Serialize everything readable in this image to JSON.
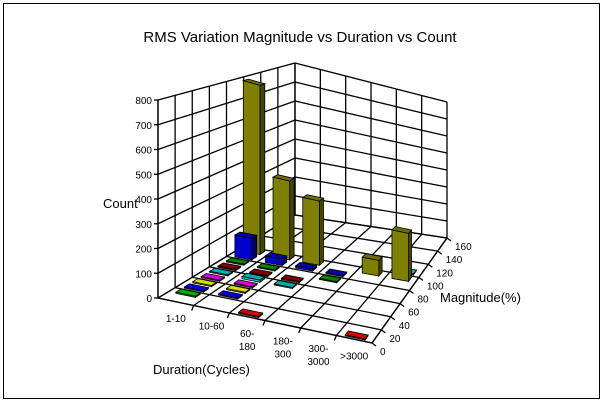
{
  "chart_data": {
    "type": "bar3d",
    "title": "RMS Variation Magnitude vs Duration vs Count",
    "xlabel": "Duration(Cycles)",
    "ylabel": "Magnitude(%)",
    "zlabel": "Count",
    "categories": [
      [
        "1-10"
      ],
      [
        "10-60"
      ],
      [
        "60-",
        "180"
      ],
      [
        "180-",
        "300"
      ],
      [
        "300-",
        "3000"
      ],
      [
        ">3000"
      ]
    ],
    "category_labels": [
      "1-10",
      "10-60",
      "60-180",
      "180-300",
      "300-3000",
      ">3000"
    ],
    "ylim": [
      0,
      160
    ],
    "yticks": [
      0,
      20,
      40,
      60,
      80,
      100,
      120,
      140,
      160
    ],
    "zlim": [
      0,
      800
    ],
    "zticks": [
      0,
      100,
      200,
      300,
      400,
      500,
      600,
      700,
      800
    ],
    "grid": true,
    "series": [
      {
        "magnitude": 105,
        "color": "#33CCCC",
        "values": [
          null,
          null,
          null,
          null,
          null,
          5
        ]
      },
      {
        "magnitude": 95,
        "color": "#808000",
        "values": [
          800,
          380,
          315,
          null,
          80,
          250
        ]
      },
      {
        "magnitude": 85,
        "color": "#0000CC",
        "values": [
          100,
          30,
          10,
          5,
          null,
          null
        ]
      },
      {
        "magnitude": 75,
        "color": "#009900",
        "values": [
          5,
          5,
          null,
          5,
          null,
          null
        ]
      },
      {
        "magnitude": 65,
        "color": "#990000",
        "values": [
          5,
          5,
          5,
          null,
          null,
          null
        ]
      },
      {
        "magnitude": 55,
        "color": "#00CCCC",
        "values": [
          5,
          10,
          5,
          null,
          null,
          null
        ]
      },
      {
        "magnitude": 45,
        "color": "#FF00FF",
        "values": [
          5,
          5,
          null,
          null,
          null,
          null
        ]
      },
      {
        "magnitude": 35,
        "color": "#FFFF00",
        "values": [
          5,
          5,
          null,
          null,
          null,
          null
        ]
      },
      {
        "magnitude": 25,
        "color": "#0000FF",
        "values": [
          5,
          5,
          null,
          null,
          null,
          null
        ]
      },
      {
        "magnitude": 15,
        "color": "#00CC00",
        "values": [
          5,
          null,
          null,
          null,
          null,
          null
        ]
      },
      {
        "magnitude": 5,
        "color": "#FF0000",
        "values": [
          null,
          null,
          5,
          null,
          null,
          5
        ]
      }
    ]
  }
}
